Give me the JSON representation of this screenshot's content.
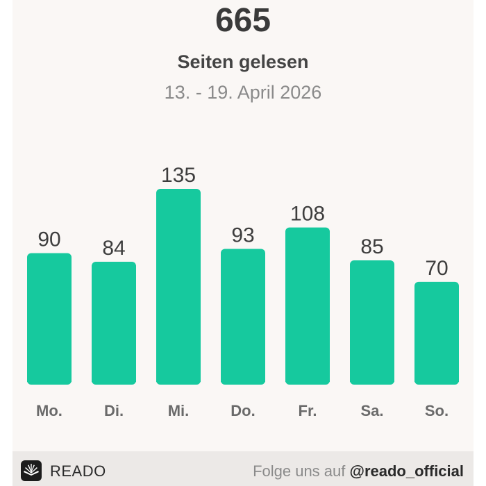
{
  "header": {
    "total": "665",
    "subtitle": "Seiten gelesen",
    "date_range": "13. - 19. April 2026"
  },
  "footer": {
    "brand": "READO",
    "logo_icon": "open-book-icon",
    "follow_text": "Folge uns auf",
    "handle": "@reado_official"
  },
  "colors": {
    "bar": "#16c99e",
    "background": "#faf7f5",
    "footer_bg": "#ece9e7"
  },
  "chart_data": {
    "type": "bar",
    "categories": [
      "Mo.",
      "Di.",
      "Mi.",
      "Do.",
      "Fr.",
      "Sa.",
      "So."
    ],
    "values": [
      90,
      84,
      135,
      93,
      108,
      85,
      70
    ],
    "title": "",
    "xlabel": "",
    "ylabel": "",
    "ylim": [
      0,
      135
    ],
    "grid": false,
    "legend": "none",
    "data_labels": true
  }
}
